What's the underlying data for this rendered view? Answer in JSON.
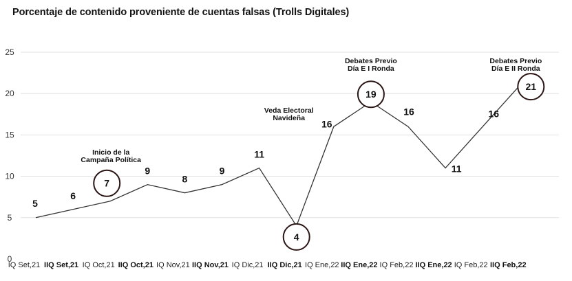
{
  "chart_data": {
    "type": "line",
    "title": "Porcentaje de contenido proveniente de cuentas falsas (Trolls Digitales)",
    "xlabel": "",
    "ylabel": "",
    "ylim": [
      0,
      25
    ],
    "yticks": [
      0,
      5,
      10,
      15,
      20,
      25
    ],
    "grid": true,
    "categories": [
      "IQ Set,21",
      "IIQ Set,21",
      "IQ Oct,21",
      "IIQ Oct,21",
      "IQ Nov,21",
      "IIQ Nov,21",
      "IQ Dic,21",
      "IIQ Dic,21",
      "IQ Ene,22",
      "IIQ Ene,22",
      "IQ Feb,22",
      "IIQ Ene,22",
      "IQ Feb,22",
      "IIQ Feb,22"
    ],
    "category_bold": [
      false,
      true,
      false,
      true,
      false,
      true,
      false,
      true,
      false,
      true,
      false,
      true,
      false,
      true
    ],
    "series": [
      {
        "values": [
          5,
          6,
          7,
          9,
          8,
          9,
          11,
          4,
          16,
          19,
          16,
          11,
          16,
          21
        ]
      }
    ],
    "data_labels": [
      "5",
      "6",
      "7",
      "9",
      "8",
      "9",
      "11",
      "4",
      "16",
      "19",
      "16",
      "11",
      "16",
      "21"
    ],
    "circled_points": [
      2,
      7,
      9,
      13
    ],
    "annotations": [
      {
        "index": 2,
        "lines": [
          "Inicio de la",
          "Campaña Política"
        ]
      },
      {
        "index": 7,
        "lines": [
          "Veda Electoral",
          "Navideña"
        ]
      },
      {
        "index": 9,
        "lines": [
          "Debates Previo",
          "Día E I Ronda"
        ]
      },
      {
        "index": 13,
        "lines": [
          "Debates Previo",
          "Día E II Ronda"
        ]
      }
    ],
    "colors": {
      "line": "#333333",
      "grid": "#e0e0e0",
      "circle": "#2a1414"
    }
  }
}
